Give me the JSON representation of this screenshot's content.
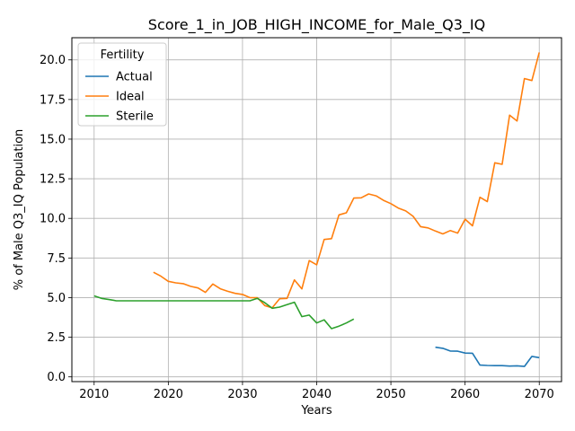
{
  "chart_data": {
    "type": "line",
    "title": "Score_1_in_JOB_HIGH_INCOME_for_Male_Q3_IQ",
    "xlabel": "Years",
    "ylabel": "% of Male Q3_IQ Population",
    "xlim": [
      2007,
      2073
    ],
    "ylim": [
      -0.3,
      21.4
    ],
    "xticks": [
      2010,
      2020,
      2030,
      2040,
      2050,
      2060,
      2070
    ],
    "xtick_labels": [
      "2010",
      "2020",
      "2030",
      "2040",
      "2050",
      "2060",
      "2070"
    ],
    "yticks": [
      0,
      2.5,
      5,
      7.5,
      10,
      12.5,
      15,
      17.5,
      20
    ],
    "ytick_labels": [
      "0.0",
      "2.5",
      "5.0",
      "7.5",
      "10.0",
      "12.5",
      "15.0",
      "17.5",
      "20.0"
    ],
    "grid": true,
    "legend": {
      "title": "Fertility",
      "placement": "top-left",
      "entries": [
        "Actual",
        "Ideal",
        "Sterile"
      ]
    },
    "series": [
      {
        "name": "Actual",
        "color": "#1f77b4",
        "x": [
          2056,
          2057,
          2058,
          2059,
          2060,
          2061,
          2062,
          2063,
          2064,
          2065,
          2066,
          2067,
          2068,
          2069,
          2070
        ],
        "y": [
          1.87,
          1.8,
          1.63,
          1.62,
          1.5,
          1.49,
          0.74,
          0.72,
          0.71,
          0.71,
          0.68,
          0.7,
          0.66,
          1.29,
          1.21
        ]
      },
      {
        "name": "Ideal",
        "color": "#ff7f0e",
        "x": [
          2018,
          2019,
          2020,
          2021,
          2022,
          2023,
          2024,
          2025,
          2026,
          2027,
          2028,
          2029,
          2030,
          2031,
          2032,
          2033,
          2034,
          2035,
          2036,
          2037,
          2038,
          2039,
          2040,
          2041,
          2042,
          2043,
          2044,
          2045,
          2046,
          2047,
          2048,
          2049,
          2050,
          2051,
          2052,
          2053,
          2054,
          2055,
          2056,
          2057,
          2058,
          2059,
          2060,
          2061,
          2062,
          2063,
          2064,
          2065,
          2066,
          2067,
          2068,
          2069,
          2070
        ],
        "y": [
          6.6,
          6.35,
          6.03,
          5.93,
          5.88,
          5.71,
          5.61,
          5.33,
          5.86,
          5.56,
          5.4,
          5.27,
          5.2,
          5.0,
          5.0,
          4.5,
          4.36,
          4.93,
          4.95,
          6.12,
          5.55,
          7.34,
          7.07,
          8.67,
          8.72,
          10.22,
          10.35,
          11.28,
          11.3,
          11.54,
          11.42,
          11.14,
          10.93,
          10.65,
          10.47,
          10.13,
          9.48,
          9.4,
          9.2,
          9.02,
          9.23,
          9.07,
          9.95,
          9.53,
          11.33,
          11.06,
          13.51,
          13.41,
          16.51,
          16.14,
          18.82,
          18.7,
          20.47
        ]
      },
      {
        "name": "Sterile",
        "color": "#2ca02c",
        "x": [
          2010,
          2011,
          2012,
          2013,
          2014,
          2015,
          2016,
          2017,
          2018,
          2019,
          2020,
          2021,
          2022,
          2023,
          2024,
          2025,
          2026,
          2027,
          2028,
          2029,
          2030,
          2031,
          2032,
          2033,
          2034,
          2035,
          2036,
          2037,
          2038,
          2039,
          2040,
          2041,
          2042,
          2043,
          2044,
          2045
        ],
        "y": [
          5.11,
          4.95,
          4.88,
          4.8,
          4.8,
          4.8,
          4.8,
          4.8,
          4.8,
          4.8,
          4.8,
          4.8,
          4.8,
          4.8,
          4.8,
          4.8,
          4.8,
          4.8,
          4.8,
          4.8,
          4.8,
          4.8,
          4.95,
          4.68,
          4.33,
          4.4,
          4.56,
          4.71,
          3.8,
          3.9,
          3.4,
          3.6,
          3.04,
          3.2,
          3.4,
          3.65
        ]
      }
    ]
  }
}
